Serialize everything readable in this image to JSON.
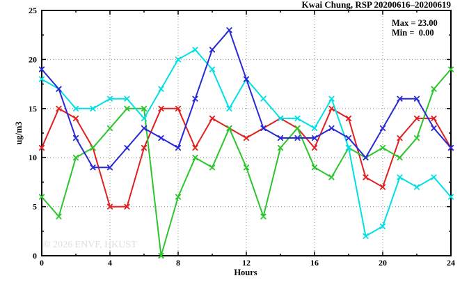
{
  "title": "Kwai Chung, RSP 20200616–20200619",
  "legend": {
    "max_label": "Max = 23.00",
    "min_label": "Min =  0.00"
  },
  "watermark": "© 2026 ENVF, HKUST",
  "axes": {
    "x_label": "Hours",
    "y_label": "ug/m3"
  },
  "chart_data": {
    "type": "line",
    "title": "Kwai Chung, RSP 20200616–20200619",
    "xlabel": "Hours",
    "ylabel": "ug/m3",
    "xlim": [
      0,
      24
    ],
    "ylim": [
      0,
      25
    ],
    "x_tick_labels": [
      "0",
      "4",
      "8",
      "12",
      "16",
      "20",
      "24"
    ],
    "y_tick_labels": [
      "0",
      "5",
      "10",
      "15",
      "20",
      "25"
    ],
    "x_major_ticks": [
      0,
      4,
      8,
      12,
      16,
      20,
      24
    ],
    "y_major_ticks": [
      0,
      5,
      10,
      15,
      20,
      25
    ],
    "x_minor_step": 2,
    "y_minor_step": 2.5,
    "grid": true,
    "legend_position": "top-right-inside",
    "annotations": [
      "Max = 23.00",
      "Min =  0.00"
    ],
    "x": [
      0,
      1,
      2,
      3,
      4,
      5,
      6,
      7,
      8,
      9,
      10,
      11,
      12,
      13,
      14,
      15,
      16,
      17,
      18,
      19,
      20,
      21,
      22,
      23,
      24
    ],
    "series": [
      {
        "name": "red-series",
        "color": "#e01f1f",
        "values": [
          11,
          15,
          14,
          11,
          5,
          5,
          11,
          15,
          15,
          11,
          14,
          13,
          12,
          13,
          14,
          13,
          11,
          15,
          14,
          8,
          7,
          12,
          14,
          14,
          11
        ]
      },
      {
        "name": "green-series",
        "color": "#2cc52c",
        "values": [
          6,
          4,
          10,
          11,
          13,
          15,
          15,
          0,
          6,
          10,
          9,
          13,
          9,
          4,
          11,
          13,
          9,
          8,
          11,
          10,
          11,
          10,
          12,
          17,
          19
        ]
      },
      {
        "name": "cyan-series",
        "color": "#00e0e6",
        "values": [
          18,
          17,
          15,
          15,
          16,
          16,
          14,
          17,
          20,
          21,
          19,
          15,
          18,
          16,
          14,
          14,
          13,
          16,
          11,
          2,
          3,
          8,
          7,
          8,
          6
        ]
      },
      {
        "name": "blue-series",
        "color": "#2828d7",
        "values": [
          19,
          17,
          12,
          9,
          9,
          11,
          13,
          12,
          11,
          16,
          21,
          23,
          18,
          13,
          12,
          12,
          12,
          13,
          12,
          10,
          13,
          16,
          16,
          13,
          11
        ]
      }
    ],
    "colors": {
      "axis": "#000000",
      "grid": "#888888",
      "background": "#ffffff",
      "watermark_color": "#dedede"
    }
  }
}
